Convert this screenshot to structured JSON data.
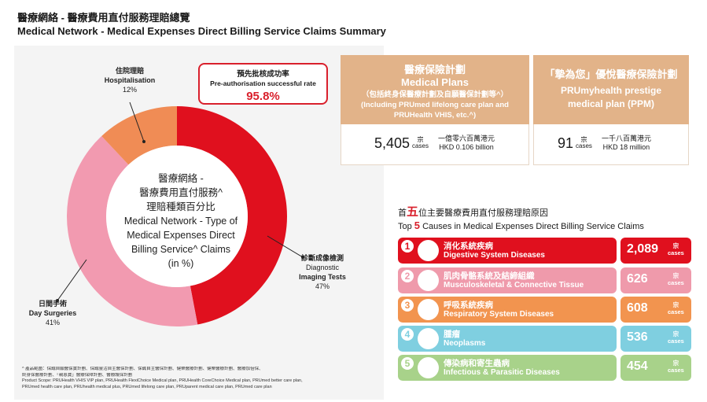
{
  "header": {
    "title_zh": "醫療網絡 - 醫療費用直付服務理賠總覽",
    "title_en": "Medical Network - Medical Expenses Direct Billing Service Claims Summary"
  },
  "chart_data": {
    "type": "pie",
    "title_lines": [
      "醫療網絡 -",
      "醫療費用直付服務^",
      "理賠種類百分比",
      "Medical Network - Type of",
      "Medical Expenses Direct",
      "Billing Service^ Claims",
      "(in %)"
    ],
    "slices": [
      {
        "label_zh": "診斷成像檢測",
        "label_en_1": "Diagnostic",
        "label_en_2": "Imaging Tests",
        "value": 47,
        "value_label": "47%",
        "color": "#e0101e"
      },
      {
        "label_zh": "日間手術",
        "label_en_1": "Day Surgeries",
        "label_en_2": "",
        "value": 41,
        "value_label": "41%",
        "color": "#f29ab0"
      },
      {
        "label_zh": "住院理賠",
        "label_en_1": "Hospitalisation",
        "label_en_2": "",
        "value": 12,
        "value_label": "12%",
        "color": "#f08c55"
      }
    ]
  },
  "preauth": {
    "label_zh": "預先批核成功率",
    "label_en": "Pre-authorisation successful rate",
    "value": "95.8%"
  },
  "plans": [
    {
      "lines": [
        "醫療保險計劃",
        "Medical Plans",
        "（包括終身保醫療計劃及自願醫保計劃等^）",
        "(Including PRUmed lifelong care plan and",
        "PRUHealth VHIS, etc.^)"
      ],
      "count": "5,405",
      "unit_zh": "宗",
      "unit_en": "cases",
      "amount_zh": "一億零六百萬港元",
      "amount_en": "HKD 0.106 billion"
    },
    {
      "lines": [
        "「摯為您」優悅醫療保險計劃",
        "PRUmyhealth prestige",
        "medical plan (PPM)"
      ],
      "count": "91",
      "unit_zh": "宗",
      "unit_en": "cases",
      "amount_zh": "一千八百萬港元",
      "amount_en": "HKD 18 million"
    }
  ],
  "top5": {
    "title_zh_pre": "首",
    "title_zh_num": "五",
    "title_zh_post": "位主要醫療費用直付服務理賠原因",
    "title_en_pre": "Top ",
    "title_en_num": "5",
    "title_en_post": " Causes in Medical Expenses Direct Billing Service Claims",
    "causes": [
      {
        "rank": "1",
        "zh": "消化系統疾病",
        "en": "Digestive System Diseases",
        "count": "2,089",
        "unit_zh": "宗",
        "unit_en": "cases",
        "color": "#e0101e",
        "count_color": "#e0101e",
        "icon": "stomach-icon"
      },
      {
        "rank": "2",
        "zh": "肌肉骨骼系統及結締組織",
        "en": "Musculoskeletal & Connective Tissue",
        "count": "626",
        "unit_zh": "宗",
        "unit_en": "cases",
        "color": "#ef9aab",
        "count_color": "#ef9aab",
        "icon": "bone-icon"
      },
      {
        "rank": "3",
        "zh": "呼吸系統疾病",
        "en": "Respiratory System Diseases",
        "count": "608",
        "unit_zh": "宗",
        "unit_en": "cases",
        "color": "#f2944f",
        "count_color": "#f2944f",
        "icon": "lungs-icon"
      },
      {
        "rank": "4",
        "zh": "腫瘤",
        "en": "Neoplasms",
        "count": "536",
        "unit_zh": "宗",
        "unit_en": "cases",
        "color": "#7fcfe0",
        "count_color": "#7fcfe0",
        "icon": "cell-icon"
      },
      {
        "rank": "5",
        "zh": "傳染病和寄生蟲病",
        "en": "Infectious & Parasitic Diseases",
        "count": "454",
        "unit_zh": "宗",
        "unit_en": "cases",
        "color": "#a8d28a",
        "count_color": "#a8d28a",
        "icon": "virus-icon"
      }
    ]
  },
  "footnote": {
    "line1": "^  產品範圍：保誠自願醫保實計劃、保誠靈活自主醫保計劃、保誠自主醫保計劃、健樂醫療計劃、健樂醫療計劃、醫療加倍保、",
    "line2": "    終身保醫療計劃、「親恩寶」醫療保障計劃、醫療護保計劃",
    "line3": "    Product Scope: PRUHealth VHIS VIP plan, PRUHealth FlexiChoice Medical plan, PRUHealth CoreChoice Medical plan, PRUmed better care plan,",
    "line4": "    PRUmed health care plan, PRUhealth medical plus, PRUmed lifelong care plan, PRUparent medical care plan, PRUmed care plan"
  }
}
